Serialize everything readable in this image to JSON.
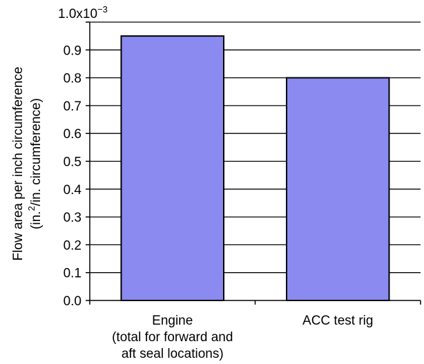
{
  "chart_data": {
    "type": "bar",
    "categories": [
      [
        "Engine",
        "(total for forward and",
        "aft seal locations)"
      ],
      [
        "ACC test rig"
      ]
    ],
    "values": [
      0.95,
      0.8
    ],
    "scale_multiplier": {
      "base": "1.0x10",
      "exponent": "−3"
    },
    "ylabel_line1": "Flow area per inch circumference",
    "ylabel_line2_pre": "(in.",
    "ylabel_line2_sup": "2",
    "ylabel_line2_post": "/in. circumference)",
    "ylim": [
      0,
      1.0
    ],
    "yticks": [
      "0.0",
      "0.1",
      "0.2",
      "0.3",
      "0.4",
      "0.5",
      "0.6",
      "0.7",
      "0.8",
      "0.9"
    ],
    "ytick_values": [
      0,
      0.1,
      0.2,
      0.3,
      0.4,
      0.5,
      0.6,
      0.7,
      0.8,
      0.9
    ],
    "grid": true,
    "colors": {
      "bar": "#8a8af0",
      "bar_edge": "#000000",
      "grid": "#000000"
    }
  }
}
